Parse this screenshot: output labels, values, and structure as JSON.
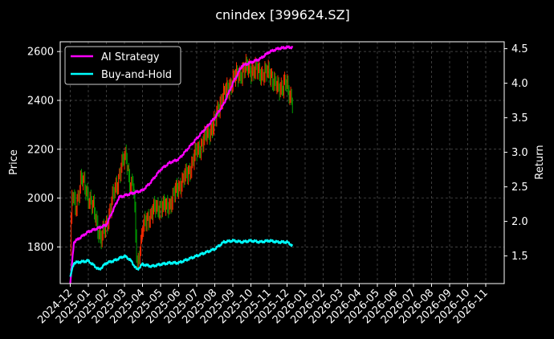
{
  "chart_data": {
    "type": "line",
    "title": "cnindex [399624.SZ]",
    "ylabel": "Price",
    "y2label": "Return",
    "ylim": [
      1650,
      2640
    ],
    "y2lim": [
      1.1,
      4.6
    ],
    "yticks": [
      1800,
      2000,
      2200,
      2400,
      2600
    ],
    "y2ticks": [
      "1.5",
      "2.0",
      "2.5",
      "3.0",
      "3.5",
      "4.0",
      "4.5"
    ],
    "xticks": [
      "2024-12",
      "2025-01",
      "2025-02",
      "2025-03",
      "2025-04",
      "2025-05",
      "2025-06",
      "2025-07",
      "2025-08",
      "2025-09",
      "2025-10",
      "2025-11",
      "2025-12",
      "2026-01",
      "2026-02",
      "2026-03",
      "2026-04",
      "2026-05",
      "2026-06",
      "2026-07",
      "2026-08",
      "2026-09",
      "2026-10",
      "2026-11"
    ],
    "grid": true,
    "legend_position": "top-left",
    "colors": {
      "ai": "#ff00ff",
      "bh": "#00ffff",
      "up": "#ff2a00",
      "down": "#00a000",
      "background": "#000000"
    },
    "series": [
      {
        "name": "AI Strategy",
        "axis": "return",
        "points": [
          [
            0,
            1.1
          ],
          [
            0.2,
            1.7
          ],
          [
            1,
            1.85
          ],
          [
            2,
            1.95
          ],
          [
            2.7,
            2.35
          ],
          [
            3.3,
            2.4
          ],
          [
            4,
            2.45
          ],
          [
            4.4,
            2.55
          ],
          [
            5,
            2.75
          ],
          [
            5.5,
            2.85
          ],
          [
            6,
            2.9
          ],
          [
            6.5,
            3.05
          ],
          [
            7,
            3.2
          ],
          [
            7.5,
            3.35
          ],
          [
            8,
            3.5
          ],
          [
            8.5,
            3.7
          ],
          [
            9,
            4.0
          ],
          [
            9.5,
            4.25
          ],
          [
            10,
            4.3
          ],
          [
            10.5,
            4.35
          ],
          [
            11,
            4.45
          ],
          [
            11.5,
            4.5
          ],
          [
            12,
            4.52
          ],
          [
            12.3,
            4.52
          ]
        ]
      },
      {
        "name": "Buy-and-Hold",
        "axis": "return",
        "points": [
          [
            0,
            1.2
          ],
          [
            0.2,
            1.4
          ],
          [
            1,
            1.43
          ],
          [
            1.6,
            1.3
          ],
          [
            2,
            1.4
          ],
          [
            2.4,
            1.43
          ],
          [
            3,
            1.5
          ],
          [
            3.3,
            1.45
          ],
          [
            3.7,
            1.3
          ],
          [
            4,
            1.38
          ],
          [
            4.5,
            1.35
          ],
          [
            5,
            1.38
          ],
          [
            5.5,
            1.4
          ],
          [
            6,
            1.4
          ],
          [
            6.5,
            1.45
          ],
          [
            7,
            1.5
          ],
          [
            7.5,
            1.55
          ],
          [
            8,
            1.6
          ],
          [
            8.5,
            1.7
          ],
          [
            9,
            1.72
          ],
          [
            9.5,
            1.7
          ],
          [
            10,
            1.72
          ],
          [
            10.5,
            1.7
          ],
          [
            11,
            1.72
          ],
          [
            11.5,
            1.7
          ],
          [
            12,
            1.7
          ],
          [
            12.3,
            1.65
          ]
        ]
      },
      {
        "name": "Price",
        "axis": "price",
        "points": [
          [
            0,
            1780
          ],
          [
            0.1,
            2010
          ],
          [
            0.3,
            1960
          ],
          [
            0.6,
            2080
          ],
          [
            1,
            2010
          ],
          [
            1.3,
            1950
          ],
          [
            1.7,
            1830
          ],
          [
            2,
            1890
          ],
          [
            2.3,
            1990
          ],
          [
            2.6,
            2060
          ],
          [
            2.8,
            2130
          ],
          [
            3.1,
            2170
          ],
          [
            3.3,
            2060
          ],
          [
            3.5,
            2050
          ],
          [
            3.7,
            1720
          ],
          [
            4,
            1870
          ],
          [
            4.3,
            1920
          ],
          [
            4.6,
            1950
          ],
          [
            5,
            1970
          ],
          [
            5.3,
            1960
          ],
          [
            5.6,
            1990
          ],
          [
            6,
            2050
          ],
          [
            6.5,
            2100
          ],
          [
            7,
            2190
          ],
          [
            7.5,
            2250
          ],
          [
            8,
            2310
          ],
          [
            8.4,
            2420
          ],
          [
            8.7,
            2440
          ],
          [
            9,
            2490
          ],
          [
            9.3,
            2500
          ],
          [
            9.6,
            2530
          ],
          [
            9.9,
            2530
          ],
          [
            10.3,
            2520
          ],
          [
            10.7,
            2510
          ],
          [
            11.1,
            2510
          ],
          [
            11.5,
            2440
          ],
          [
            11.9,
            2480
          ],
          [
            12.1,
            2420
          ],
          [
            12.3,
            2410
          ]
        ]
      }
    ]
  }
}
